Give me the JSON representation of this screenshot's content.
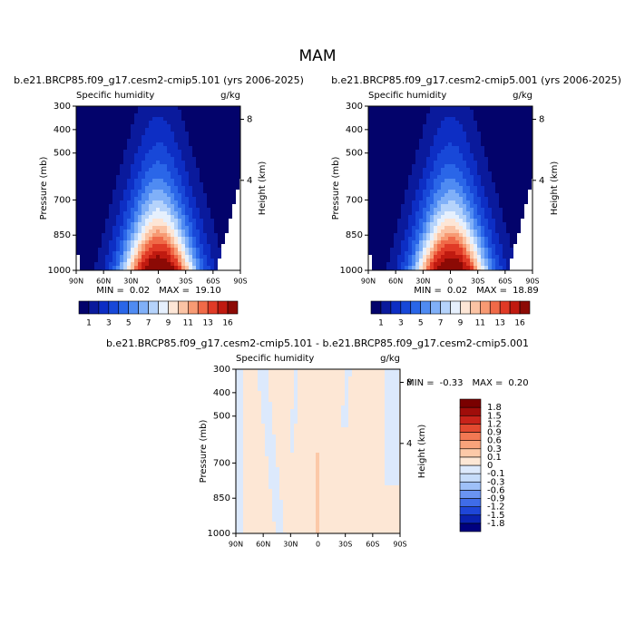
{
  "title": "MAM",
  "chart_data": [
    {
      "type": "contour",
      "title": "b.e21.BRCP85.f09_g17.cesm2-cmip5.101 (yrs 2006-2025)",
      "left_label": "Specific humidity",
      "right_label": "g/kg",
      "ylabel": "Pressure (mb)",
      "y2label": "Height (km)",
      "xlim": [
        90,
        -90
      ],
      "xticks": [
        {
          "value": 90,
          "label": "90N"
        },
        {
          "value": 60,
          "label": "60N"
        },
        {
          "value": 30,
          "label": "30N"
        },
        0,
        {
          "value": -30,
          "label": "30S"
        },
        {
          "value": -60,
          "label": "60S"
        },
        {
          "value": -90,
          "label": "90S"
        }
      ],
      "ylim": [
        300,
        1000
      ],
      "yticks": [
        300,
        400,
        500,
        700,
        850,
        1000
      ],
      "y2ticks": [
        8,
        4
      ],
      "min_label": "MIN =",
      "min": "0.02",
      "max_label": "MAX =",
      "max": "19.10",
      "colorbar_labels": [
        1,
        3,
        5,
        7,
        9,
        11,
        13,
        16
      ],
      "colors": [
        "#03036b",
        "#0a1a9c",
        "#0d2ec4",
        "#1848d8",
        "#2a66e8",
        "#4f8bf2",
        "#80b0f8",
        "#b5d3fb",
        "#e6f0fd",
        "#fde6d6",
        "#fbc3a4",
        "#f79a73",
        "#f06a48",
        "#e03a26",
        "#c01a10",
        "#8c0a05"
      ]
    },
    {
      "type": "contour",
      "title": "b.e21.BRCP85.f09_g17.cesm2-cmip5.001 (yrs 2006-2025)",
      "left_label": "Specific humidity",
      "right_label": "g/kg",
      "ylabel": "Pressure (mb)",
      "y2label": "Height (km)",
      "xlim": [
        90,
        -90
      ],
      "xticks": [
        {
          "value": 90,
          "label": "90N"
        },
        {
          "value": 60,
          "label": "60N"
        },
        {
          "value": 30,
          "label": "30N"
        },
        0,
        {
          "value": -30,
          "label": "30S"
        },
        {
          "value": -60,
          "label": "60S"
        },
        {
          "value": -90,
          "label": "90S"
        }
      ],
      "ylim": [
        300,
        1000
      ],
      "yticks": [
        300,
        400,
        500,
        700,
        850,
        1000
      ],
      "y2ticks": [
        8,
        4
      ],
      "min_label": "MIN =",
      "min": "0.02",
      "max_label": "MAX =",
      "max": "18.89",
      "colorbar_labels": [
        1,
        3,
        5,
        7,
        9,
        11,
        13,
        16
      ],
      "colors": [
        "#03036b",
        "#0a1a9c",
        "#0d2ec4",
        "#1848d8",
        "#2a66e8",
        "#4f8bf2",
        "#80b0f8",
        "#b5d3fb",
        "#e6f0fd",
        "#fde6d6",
        "#fbc3a4",
        "#f79a73",
        "#f06a48",
        "#e03a26",
        "#c01a10",
        "#8c0a05"
      ]
    },
    {
      "type": "contour",
      "title": "b.e21.BRCP85.f09_g17.cesm2-cmip5.101 - b.e21.BRCP85.f09_g17.cesm2-cmip5.001",
      "left_label": "Specific humidity",
      "right_label": "g/kg",
      "ylabel": "Pressure (mb)",
      "y2label": "Height (km)",
      "xlim": [
        90,
        -90
      ],
      "xticks": [
        {
          "value": 90,
          "label": "90N"
        },
        {
          "value": 60,
          "label": "60N"
        },
        {
          "value": 30,
          "label": "30N"
        },
        0,
        {
          "value": -30,
          "label": "30S"
        },
        {
          "value": -60,
          "label": "60S"
        },
        {
          "value": -90,
          "label": "90S"
        }
      ],
      "ylim": [
        300,
        1000
      ],
      "yticks": [
        300,
        400,
        500,
        700,
        850,
        1000
      ],
      "y2ticks": [
        8,
        4
      ],
      "min_label": "MIN =",
      "min": "-0.33",
      "max_label": "MAX =",
      "max": "0.20",
      "colorbar_labels": [
        -1.8,
        -1.5,
        -1.2,
        -0.9,
        -0.6,
        -0.3,
        -0.1,
        0,
        0.1,
        0.3,
        0.6,
        0.9,
        1.2,
        1.5,
        1.8
      ],
      "colors": [
        "#00007f",
        "#0a22b0",
        "#1e46d8",
        "#3f6ce8",
        "#6a94f2",
        "#9ec0f8",
        "#c6dcfa",
        "#dce9fc",
        "#fde7d5",
        "#fcc9a8",
        "#f9a37b",
        "#f27853",
        "#e34a30",
        "#c8231a",
        "#a00d0a",
        "#7a0000"
      ]
    }
  ]
}
